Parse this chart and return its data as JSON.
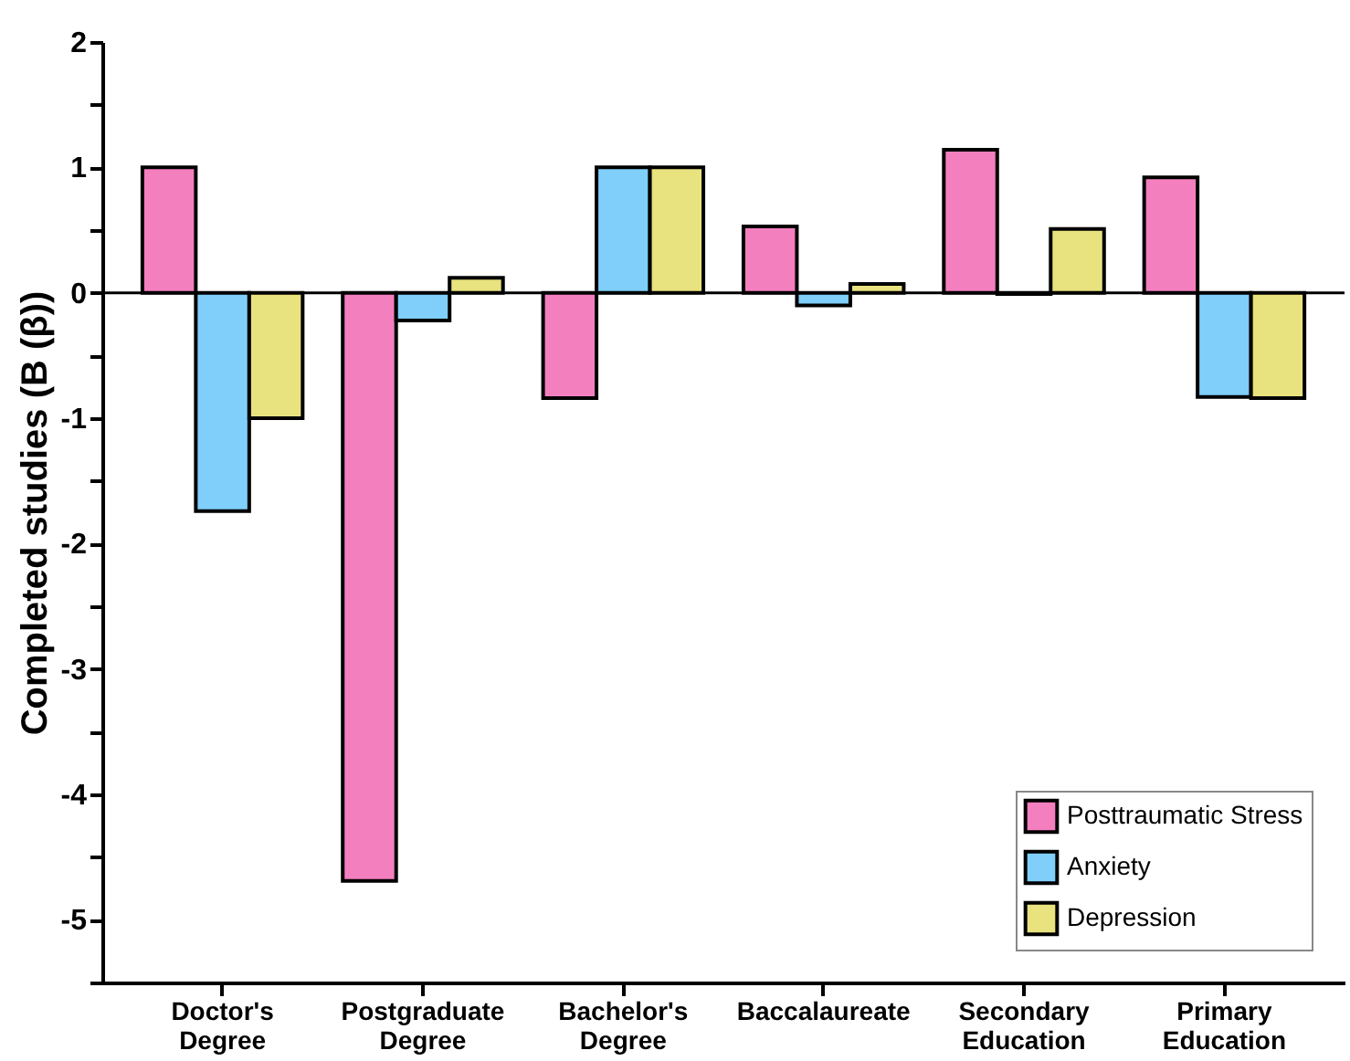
{
  "chart_data": {
    "type": "bar",
    "ylabel": "Completed studies (B (β))",
    "categories": [
      "Doctor's Degree",
      "Postgraduate Degree",
      "Bachelor's Degree",
      "Baccalaureate",
      "Secondary Education",
      "Primary Education"
    ],
    "series": [
      {
        "name": "Posttraumatic Stress",
        "color": "#f47fbf",
        "values": [
          1.0,
          -4.69,
          -0.84,
          0.53,
          1.14,
          0.92
        ]
      },
      {
        "name": "Anxiety",
        "color": "#7fcffa",
        "values": [
          -1.74,
          -0.22,
          1.0,
          -0.1,
          -0.01,
          -0.83
        ]
      },
      {
        "name": "Depression",
        "color": "#e8e27f",
        "values": [
          -1.0,
          0.12,
          1.0,
          0.07,
          0.51,
          -0.84
        ]
      }
    ],
    "ylim": [
      -5.5,
      2
    ],
    "yticks": [
      {
        "value": -5.5,
        "label": null
      },
      -5,
      {
        "value": -4.5,
        "label": null
      },
      -4,
      {
        "value": -3.5,
        "label": null
      },
      -3,
      {
        "value": -2.5,
        "label": null
      },
      -2,
      {
        "value": -1.5,
        "label": null
      },
      -1,
      {
        "value": -0.5,
        "label": null
      },
      0,
      {
        "value": 0.5,
        "label": null
      },
      1,
      {
        "value": 1.5,
        "label": null
      },
      2
    ],
    "ref_lines": [
      {
        "axis": "y",
        "value": 0,
        "color": "#000000"
      }
    ],
    "grid": false,
    "legend": "bottom right"
  }
}
